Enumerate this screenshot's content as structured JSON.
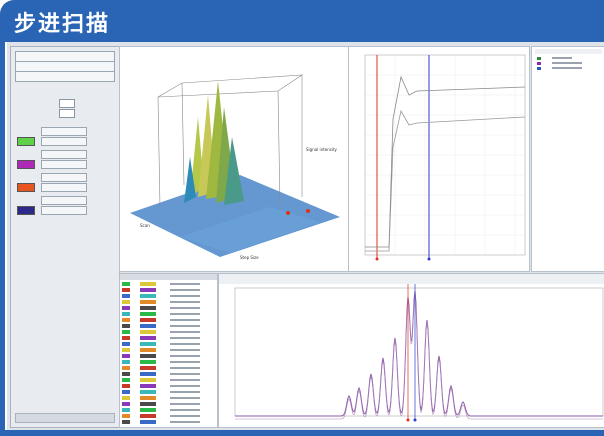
{
  "header": {
    "title": "步进扫描"
  },
  "colors": {
    "brand_blue": "#2a64b4",
    "swatch_green": "#5fd24a",
    "swatch_purple": "#b02ab8",
    "swatch_orange": "#e8541e",
    "swatch_navy": "#2b2a8a",
    "peak_purple": "#8e5ca8",
    "marker_red": "#e0301e",
    "marker_blue": "#2a3ec8"
  },
  "sidebar": {
    "icons": [
      "square-button-icon",
      "square-button-icon",
      "square-button-icon",
      "square-button-icon"
    ]
  },
  "views": {
    "surface_label": "Step Size",
    "side_axis_label": "Scan"
  },
  "table": {
    "rows": 24
  }
}
